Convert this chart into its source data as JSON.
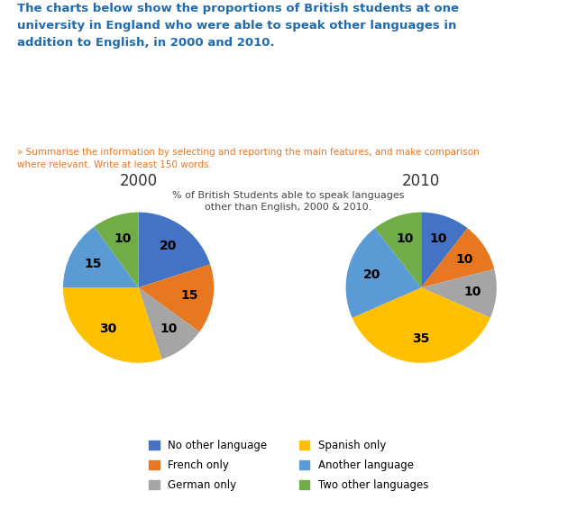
{
  "title_main": "The charts below show the proportions of British students at one\nuniversity in England who were able to speak other languages in\naddition to English, in 2000 and 2010.",
  "subtitle": "» Summarise the information by selecting and reporting the main features, and make comparison\nwhere relevant. Write at least 150 words.",
  "chart_title": "% of British Students able to speak languages\nother than English, 2000 & 2010.",
  "title_main_color": "#1F6CB0",
  "subtitle_color": "#E87722",
  "chart_title_color": "#444444",
  "labels": [
    "No other language",
    "French only",
    "German only",
    "Spanish only",
    "Another language",
    "Two other languages"
  ],
  "colors": [
    "#4472C4",
    "#E87722",
    "#A5A5A5",
    "#FFC000",
    "#5B9BD5",
    "#70AD47"
  ],
  "values_2000": [
    20,
    15,
    10,
    30,
    15,
    10
  ],
  "values_2010": [
    10,
    10,
    10,
    35,
    20,
    10
  ],
  "label_2000": "2000",
  "label_2010": "2010",
  "title_fontsize": 9.5,
  "subtitle_fontsize": 7.5,
  "chart_title_fontsize": 8,
  "pie_title_fontsize": 12,
  "pct_fontsize": 10,
  "legend_fontsize": 8.5,
  "bg_color": "#FFFFFF"
}
